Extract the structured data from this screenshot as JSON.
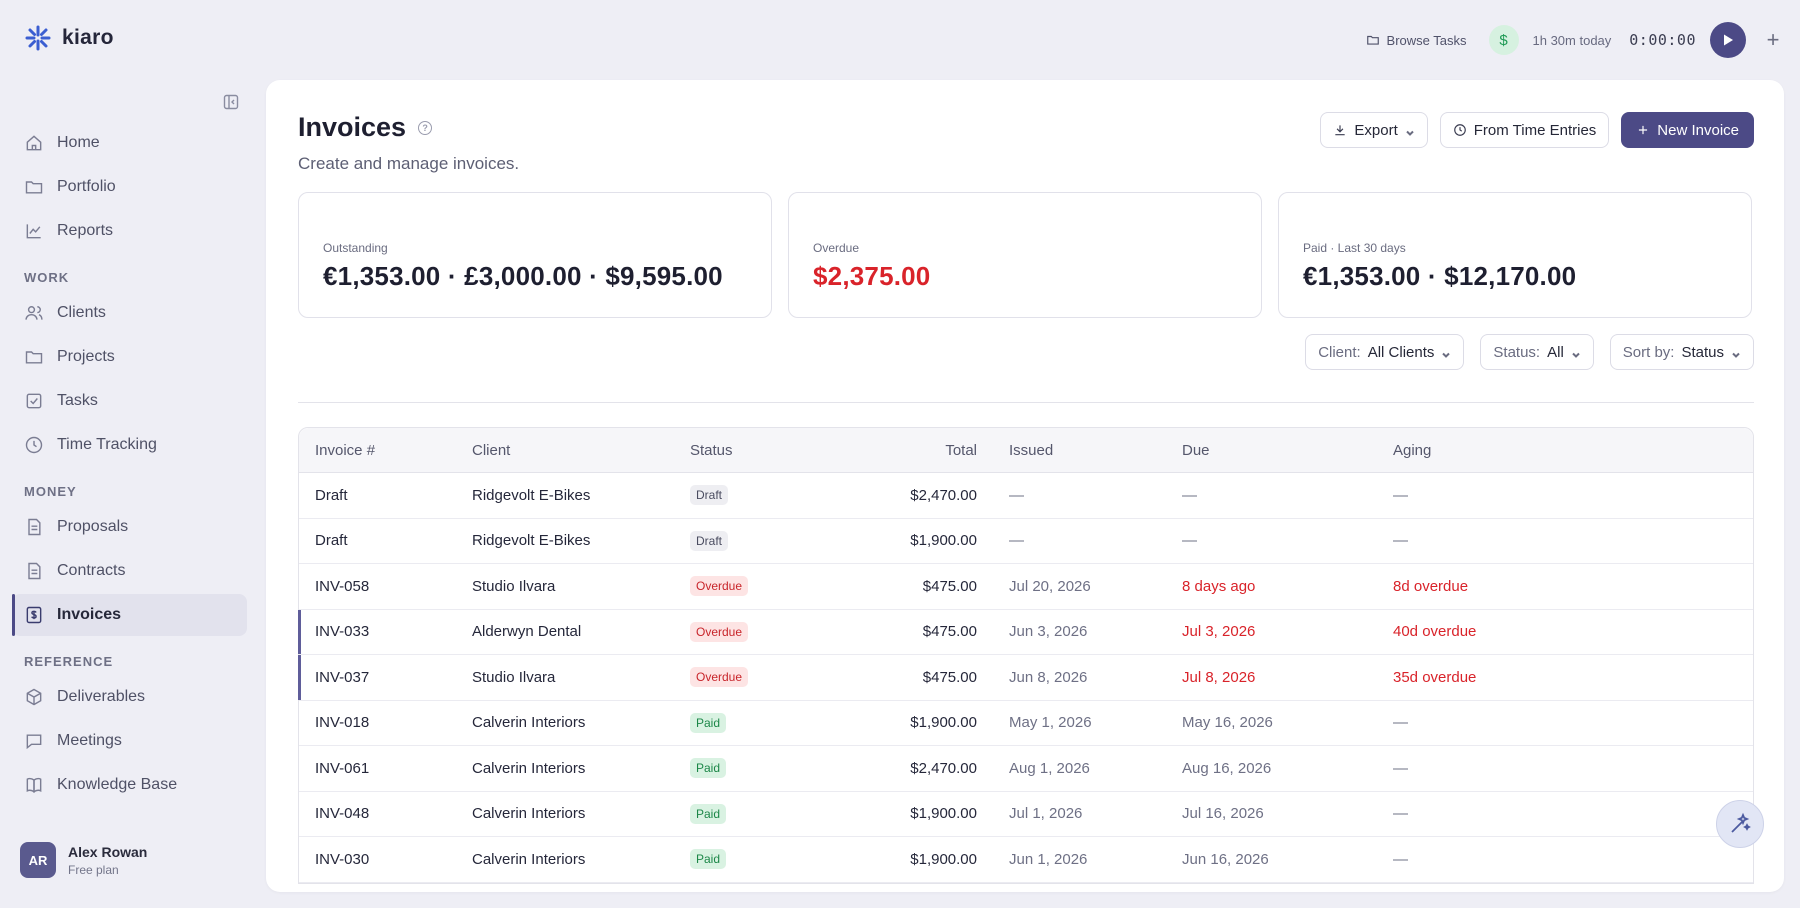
{
  "app": {
    "name": "kiaro"
  },
  "topbar": {
    "browse_label": "Browse Tasks",
    "currency_symbol": "$",
    "today_label": "1h 30m today",
    "timer": "0:00:00"
  },
  "sidebar": {
    "top_items": [
      {
        "label": "Home",
        "icon": "home-icon"
      },
      {
        "label": "Portfolio",
        "icon": "folder-icon"
      },
      {
        "label": "Reports",
        "icon": "chart-icon"
      }
    ],
    "sections": [
      {
        "label": "WORK",
        "items": [
          {
            "label": "Clients",
            "icon": "users-icon"
          },
          {
            "label": "Projects",
            "icon": "folder-icon"
          },
          {
            "label": "Tasks",
            "icon": "checkbox-icon"
          },
          {
            "label": "Time Tracking",
            "icon": "clock-icon"
          }
        ]
      },
      {
        "label": "MONEY",
        "items": [
          {
            "label": "Proposals",
            "icon": "document-icon"
          },
          {
            "label": "Contracts",
            "icon": "document-icon"
          },
          {
            "label": "Invoices",
            "icon": "invoice-icon",
            "active": true
          }
        ]
      },
      {
        "label": "REFERENCE",
        "items": [
          {
            "label": "Deliverables",
            "icon": "package-icon"
          },
          {
            "label": "Meetings",
            "icon": "message-icon"
          },
          {
            "label": "Knowledge Base",
            "icon": "book-icon"
          }
        ]
      }
    ],
    "user": {
      "initials": "AR",
      "name": "Alex Rowan",
      "plan": "Free plan"
    }
  },
  "page": {
    "title": "Invoices",
    "subtitle": "Create and manage invoices.",
    "export_label": "Export",
    "from_time_label": "From Time Entries",
    "new_invoice_label": "New Invoice"
  },
  "cards": [
    {
      "label": "Outstanding",
      "value": "€1,353.00 · £3,000.00 · $9,595.00",
      "red": false
    },
    {
      "label": "Overdue",
      "value": "$2,375.00",
      "red": true
    },
    {
      "label": "Paid · Last 30 days",
      "value": "€1,353.00 · $12,170.00",
      "red": false
    }
  ],
  "filters": [
    {
      "label": "Client:",
      "value": "All Clients"
    },
    {
      "label": "Status:",
      "value": "All"
    },
    {
      "label": "Sort by:",
      "value": "Status"
    }
  ],
  "table": {
    "columns": [
      "Invoice #",
      "Client",
      "Status",
      "Total",
      "Issued",
      "Due",
      "Aging"
    ],
    "rows": [
      {
        "invoice": "Draft",
        "client": "Ridgevolt E-Bikes",
        "status": "Draft",
        "status_type": "draft",
        "total": "$2,470.00",
        "issued": "—",
        "due": "—",
        "due_red": false,
        "aging": "—",
        "aging_red": false,
        "marked": false
      },
      {
        "invoice": "Draft",
        "client": "Ridgevolt E-Bikes",
        "status": "Draft",
        "status_type": "draft",
        "total": "$1,900.00",
        "issued": "—",
        "due": "—",
        "due_red": false,
        "aging": "—",
        "aging_red": false,
        "marked": false
      },
      {
        "invoice": "INV-058",
        "client": "Studio Ilvara",
        "status": "Overdue",
        "status_type": "overdue",
        "total": "$475.00",
        "issued": "Jul 20, 2026",
        "due": "8 days ago",
        "due_red": true,
        "aging": "8d overdue",
        "aging_red": true,
        "marked": false
      },
      {
        "invoice": "INV-033",
        "client": "Alderwyn Dental",
        "status": "Overdue",
        "status_type": "overdue",
        "total": "$475.00",
        "issued": "Jun 3, 2026",
        "due": "Jul 3, 2026",
        "due_red": true,
        "aging": "40d overdue",
        "aging_red": true,
        "marked": true
      },
      {
        "invoice": "INV-037",
        "client": "Studio Ilvara",
        "status": "Overdue",
        "status_type": "overdue",
        "total": "$475.00",
        "issued": "Jun 8, 2026",
        "due": "Jul 8, 2026",
        "due_red": true,
        "aging": "35d overdue",
        "aging_red": true,
        "marked": true
      },
      {
        "invoice": "INV-018",
        "client": "Calverin Interiors",
        "status": "Paid",
        "status_type": "paid",
        "total": "$1,900.00",
        "issued": "May 1, 2026",
        "due": "May 16, 2026",
        "due_red": false,
        "aging": "—",
        "aging_red": false,
        "marked": false
      },
      {
        "invoice": "INV-061",
        "client": "Calverin Interiors",
        "status": "Paid",
        "status_type": "paid",
        "total": "$2,470.00",
        "issued": "Aug 1, 2026",
        "due": "Aug 16, 2026",
        "due_red": false,
        "aging": "—",
        "aging_red": false,
        "marked": false
      },
      {
        "invoice": "INV-048",
        "client": "Calverin Interiors",
        "status": "Paid",
        "status_type": "paid",
        "total": "$1,900.00",
        "issued": "Jul 1, 2026",
        "due": "Jul 16, 2026",
        "due_red": false,
        "aging": "—",
        "aging_red": false,
        "marked": false
      },
      {
        "invoice": "INV-030",
        "client": "Calverin Interiors",
        "status": "Paid",
        "status_type": "paid",
        "total": "$1,900.00",
        "issued": "Jun 1, 2026",
        "due": "Jun 16, 2026",
        "due_red": false,
        "aging": "—",
        "aging_red": false,
        "marked": false
      }
    ]
  },
  "colors": {
    "accent": "#4c4a86",
    "danger": "#d9232a",
    "success": "#1c8748"
  }
}
